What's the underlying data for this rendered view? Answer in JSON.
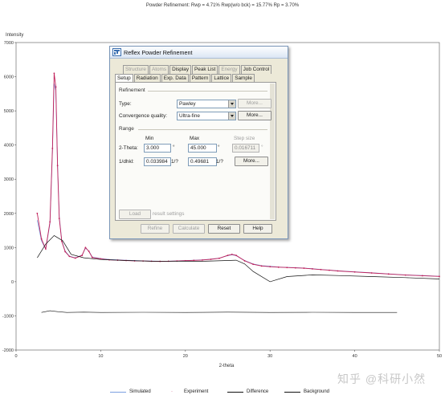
{
  "header": "Powder Refinement: Rwp = 4.71%  Rwp(w/o bck) = 15.77%  Rp = 3.70%",
  "chart_data": {
    "type": "line",
    "ylabel": "Intensity",
    "xlabel": "2-theta",
    "xlim": [
      0,
      50
    ],
    "ylim": [
      -2000,
      7000
    ],
    "xticks": [
      0,
      10,
      20,
      30,
      40,
      50
    ],
    "yticks": [
      -2000,
      -1000,
      0,
      1000,
      2000,
      3000,
      4000,
      5000,
      6000,
      7000
    ],
    "series": [
      {
        "name": "Simulated",
        "color": "#7a9fe0",
        "x": [
          2.5,
          3.0,
          3.5,
          4.0,
          4.3,
          4.5,
          4.7,
          4.9,
          5.1,
          5.4,
          5.8,
          6.3,
          7.0,
          7.8,
          8.2,
          8.6,
          9.0,
          10,
          11,
          12,
          13,
          14,
          15,
          16,
          17,
          18,
          19,
          20,
          21,
          22,
          23,
          24,
          25,
          25.5,
          26,
          27,
          28,
          29,
          30,
          31,
          32,
          33,
          34,
          35,
          36,
          37,
          38,
          40,
          42,
          44,
          46,
          48,
          50
        ],
        "y": [
          1800,
          1200,
          950,
          1700,
          3800,
          5800,
          5600,
          3500,
          1900,
          1200,
          900,
          750,
          700,
          780,
          980,
          900,
          720,
          680,
          650,
          640,
          630,
          620,
          610,
          605,
          600,
          600,
          610,
          620,
          630,
          640,
          660,
          690,
          760,
          790,
          760,
          620,
          520,
          470,
          450,
          430,
          420,
          410,
          400,
          380,
          360,
          340,
          320,
          290,
          260,
          230,
          200,
          180,
          160
        ]
      },
      {
        "name": "Experiment",
        "color": "#c0205a",
        "x": [
          2.5,
          3.0,
          3.5,
          4.0,
          4.3,
          4.5,
          4.7,
          4.9,
          5.1,
          5.4,
          5.8,
          6.3,
          7.0,
          7.8,
          8.2,
          8.6,
          9.0,
          10,
          11,
          12,
          13,
          14,
          15,
          16,
          17,
          18,
          19,
          20,
          21,
          22,
          23,
          24,
          25,
          25.5,
          26,
          27,
          28,
          29,
          30,
          31,
          32,
          33,
          34,
          35,
          36,
          37,
          38,
          40,
          42,
          44,
          46,
          48,
          50
        ],
        "y": [
          2000,
          1250,
          960,
          1750,
          3900,
          6100,
          5700,
          3400,
          1850,
          1180,
          880,
          740,
          690,
          770,
          1000,
          890,
          710,
          670,
          640,
          630,
          620,
          610,
          605,
          600,
          595,
          600,
          605,
          615,
          625,
          635,
          655,
          685,
          770,
          800,
          770,
          610,
          510,
          460,
          440,
          425,
          415,
          405,
          395,
          375,
          355,
          335,
          315,
          285,
          255,
          225,
          195,
          175,
          155
        ]
      },
      {
        "name": "Difference",
        "color": "#111111",
        "x": [
          3,
          4,
          5,
          6,
          8,
          10,
          15,
          20,
          25,
          30,
          35,
          40,
          45
        ],
        "y": [
          -900,
          -850,
          -880,
          -900,
          -890,
          -900,
          -895,
          -900,
          -890,
          -900,
          -895,
          -900,
          -900
        ]
      },
      {
        "name": "Background",
        "color": "#111111",
        "x": [
          2.5,
          3.5,
          4.5,
          5.5,
          6.5,
          8,
          10,
          13,
          16,
          19,
          22,
          25,
          26,
          27,
          28,
          30,
          32,
          35,
          38,
          42,
          46,
          50
        ],
        "y": [
          700,
          1100,
          1350,
          1200,
          800,
          700,
          650,
          620,
          600,
          600,
          600,
          620,
          630,
          520,
          300,
          0,
          150,
          200,
          180,
          150,
          120,
          80
        ]
      }
    ]
  },
  "legend": [
    "Simulated",
    "Experiment",
    "Difference",
    "Background"
  ],
  "dialog": {
    "title": "Reflex Powder Refinement",
    "tabs_row1": [
      "Structure",
      "Atoms",
      "Display",
      "Peak List",
      "Energy",
      "Job Control"
    ],
    "tabs_row2": [
      "Setup",
      "Radiation",
      "Exp. Data",
      "Pattern",
      "Lattice",
      "Sample"
    ],
    "refinement_label": "Refinement",
    "type_label": "Type:",
    "type_value": "Pawley",
    "more_label": "More...",
    "convergence_label": "Convergence quality:",
    "convergence_value": "Ultra-fine",
    "range_label": "Range",
    "min_label": "Min",
    "max_label": "Max",
    "step_label": "Step size",
    "two_theta_label": "2-Theta:",
    "two_theta_min": "3.000",
    "two_theta_max": "45.000",
    "step_value": "0.016711",
    "deg": "°",
    "dhkl_label": "1/dhkl:",
    "dhkl_min": "0.033984",
    "dhkl_max": "0.49681",
    "unit": "1/?",
    "load_label": "Load",
    "result_settings": "result settings",
    "refine_label": "Refine",
    "calculate_label": "Calculate",
    "reset_label": "Reset",
    "help_label": "Help"
  },
  "watermark": "知乎 @科研小然"
}
